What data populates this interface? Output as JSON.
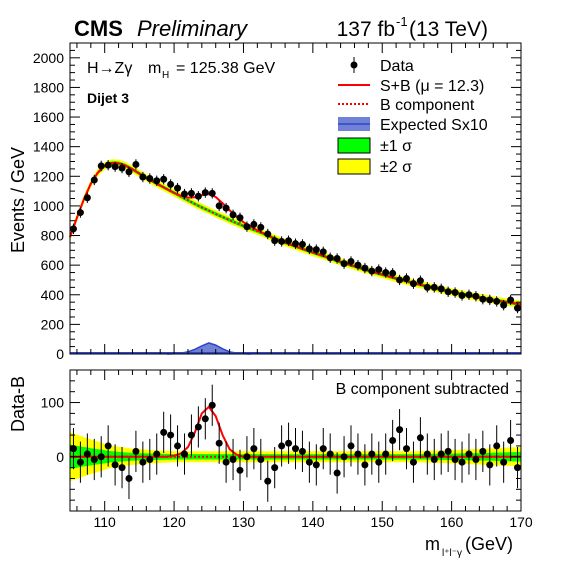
{
  "header": {
    "experiment": "CMS",
    "status": "Preliminary",
    "lumi_value": "137 fb",
    "lumi_exp": "-1",
    "lumi_energy": " (13 TeV)"
  },
  "annotations": {
    "process": "H→Zγ",
    "mass_symbol": "m",
    "mass_sub": "H",
    "mass_value": "= 125.38 GeV",
    "category": "Dijet 3",
    "ratio_note": "B component subtracted"
  },
  "legend": {
    "data": "Data",
    "sb": "S+B (μ = 12.3)",
    "b": "B component",
    "sig": "Expected Sx10",
    "one_sigma": "±1 σ",
    "two_sigma": "±2 σ"
  },
  "colors": {
    "sb_fit": "#ff0000",
    "b_component": "#ff0000",
    "signal_fill": "#6f82d6",
    "signal_line": "#3142c8",
    "one_sigma": "#00ff00",
    "two_sigma": "#ffff00",
    "data": "#000000"
  },
  "chart_data": {
    "type": "scatter",
    "x_label_main": "m",
    "x_label_sub": "l⁺l⁻γ",
    "x_label_unit": " (GeV)",
    "xlim": [
      105,
      170
    ],
    "x_ticks": [
      "110",
      "120",
      "130",
      "140",
      "150",
      "160",
      "170"
    ],
    "top": {
      "ylabel": "Events / GeV",
      "ylim": [
        0,
        2100
      ],
      "y_ticks": [
        "0",
        "200",
        "400",
        "600",
        "800",
        "1000",
        "1200",
        "1400",
        "1600",
        "1800",
        "2000"
      ],
      "data": {
        "x": [
          105.5,
          106.5,
          107.5,
          108.5,
          109.5,
          110.5,
          111.5,
          112.5,
          113.5,
          114.5,
          115.5,
          116.5,
          117.5,
          118.5,
          119.5,
          120.5,
          121.5,
          122.5,
          123.5,
          124.5,
          125.5,
          126.5,
          127.5,
          128.5,
          129.5,
          130.5,
          131.5,
          132.5,
          133.5,
          134.5,
          135.5,
          136.5,
          137.5,
          138.5,
          139.5,
          140.5,
          141.5,
          142.5,
          143.5,
          144.5,
          145.5,
          146.5,
          147.5,
          148.5,
          149.5,
          150.5,
          151.5,
          152.5,
          153.5,
          154.5,
          155.5,
          156.5,
          157.5,
          158.5,
          159.5,
          160.5,
          161.5,
          162.5,
          163.5,
          164.5,
          165.5,
          166.5,
          167.5,
          168.5,
          169.5
        ],
        "y": [
          845,
          955,
          1055,
          1175,
          1270,
          1275,
          1265,
          1255,
          1230,
          1280,
          1195,
          1185,
          1170,
          1180,
          1145,
          1120,
          1080,
          1085,
          1065,
          1090,
          1085,
          1000,
          985,
          940,
          920,
          860,
          875,
          855,
          810,
          765,
          760,
          765,
          745,
          740,
          710,
          705,
          690,
          650,
          645,
          610,
          625,
          600,
          580,
          560,
          570,
          550,
          545,
          500,
          510,
          475,
          495,
          450,
          450,
          440,
          420,
          415,
          395,
          400,
          390,
          370,
          365,
          355,
          330,
          365,
          310
        ],
        "err": 35
      },
      "fit_sb": {
        "x": [
          105,
          106,
          107,
          108,
          109,
          110,
          111,
          112,
          113,
          114,
          115,
          116,
          117,
          118,
          119,
          120,
          121,
          122,
          123,
          124,
          125,
          126,
          127,
          128,
          129,
          130,
          132,
          134,
          136,
          138,
          140,
          142,
          144,
          146,
          148,
          150,
          152,
          154,
          156,
          158,
          160,
          162,
          164,
          166,
          168,
          170
        ],
        "y": [
          790,
          920,
          1045,
          1150,
          1225,
          1270,
          1290,
          1288,
          1272,
          1247,
          1218,
          1190,
          1163,
          1138,
          1113,
          1088,
          1068,
          1056,
          1058,
          1072,
          1080,
          1060,
          1018,
          970,
          928,
          890,
          835,
          790,
          752,
          718,
          686,
          654,
          622,
          592,
          563,
          536,
          510,
          485,
          462,
          440,
          419,
          400,
          382,
          365,
          350,
          335
        ]
      },
      "fit_b": {
        "x": [
          105,
          106,
          107,
          108,
          109,
          110,
          111,
          112,
          113,
          114,
          115,
          116,
          117,
          118,
          119,
          120,
          121,
          122,
          123,
          124,
          125,
          126,
          127,
          128,
          129,
          130,
          132,
          134,
          136,
          138,
          140,
          142,
          144,
          146,
          148,
          150,
          152,
          154,
          156,
          158,
          160,
          162,
          164,
          166,
          168,
          170
        ],
        "y": [
          790,
          920,
          1045,
          1150,
          1225,
          1270,
          1290,
          1288,
          1272,
          1247,
          1218,
          1190,
          1163,
          1138,
          1113,
          1088,
          1063,
          1038,
          1013,
          990,
          968,
          946,
          925,
          904,
          884,
          865,
          830,
          790,
          752,
          718,
          686,
          654,
          622,
          592,
          563,
          536,
          510,
          485,
          462,
          440,
          419,
          400,
          382,
          365,
          350,
          335
        ]
      },
      "band_1sigma_halfwidth": 12,
      "band_2sigma_halfwidth": 25,
      "expected_signal": {
        "x": [
          119,
          120,
          121,
          122,
          123,
          124,
          125,
          126,
          127,
          128,
          129,
          130,
          131
        ],
        "y": [
          0,
          2,
          6,
          15,
          32,
          55,
          75,
          60,
          35,
          15,
          6,
          2,
          0
        ]
      }
    },
    "bottom": {
      "ylabel": "Data-B",
      "ylim": [
        -100,
        160
      ],
      "y_ticks": [
        "0",
        "100"
      ],
      "data": {
        "x": [
          105.5,
          106.5,
          107.5,
          108.5,
          109.5,
          110.5,
          111.5,
          112.5,
          113.5,
          114.5,
          115.5,
          116.5,
          117.5,
          118.5,
          119.5,
          120.5,
          121.5,
          122.5,
          123.5,
          124.5,
          125.5,
          126.5,
          127.5,
          128.5,
          129.5,
          130.5,
          131.5,
          132.5,
          133.5,
          134.5,
          135.5,
          136.5,
          137.5,
          138.5,
          139.5,
          140.5,
          141.5,
          142.5,
          143.5,
          144.5,
          145.5,
          146.5,
          147.5,
          148.5,
          149.5,
          150.5,
          151.5,
          152.5,
          153.5,
          154.5,
          155.5,
          156.5,
          157.5,
          158.5,
          159.5,
          160.5,
          161.5,
          162.5,
          163.5,
          164.5,
          165.5,
          166.5,
          167.5,
          168.5,
          169.5
        ],
        "y": [
          15,
          -10,
          5,
          -5,
          0,
          20,
          -15,
          -20,
          -40,
          10,
          -10,
          -5,
          5,
          45,
          40,
          20,
          5,
          40,
          55,
          70,
          95,
          25,
          -10,
          -5,
          -25,
          0,
          15,
          -5,
          -45,
          -20,
          20,
          25,
          15,
          10,
          -10,
          -15,
          15,
          5,
          -30,
          0,
          20,
          5,
          -15,
          5,
          -10,
          5,
          30,
          50,
          15,
          -10,
          35,
          5,
          -5,
          5,
          10,
          -5,
          -10,
          5,
          -5,
          10,
          -15,
          20,
          -10,
          30,
          -20
        ],
        "err": 38
      },
      "fit_residual": {
        "x": [
          105,
          115,
          119,
          120,
          121,
          122,
          123,
          124,
          125,
          126,
          127,
          128,
          129,
          130,
          135,
          140,
          150,
          160,
          170
        ],
        "y": [
          0,
          0,
          0,
          2,
          6,
          18,
          45,
          80,
          92,
          75,
          40,
          14,
          4,
          0,
          0,
          0,
          0,
          0,
          0
        ]
      },
      "band_1sigma": {
        "x": [
          105,
          108,
          111,
          114,
          117,
          120,
          125,
          130,
          135,
          140,
          145,
          150,
          155,
          160,
          165,
          170
        ],
        "hw": [
          22,
          16,
          10,
          7,
          6,
          5,
          5,
          5,
          5,
          5,
          5,
          5,
          5,
          6,
          7,
          9
        ]
      },
      "band_2sigma": {
        "x": [
          105,
          108,
          111,
          114,
          117,
          120,
          125,
          130,
          135,
          140,
          145,
          150,
          155,
          160,
          165,
          170
        ],
        "hw": [
          45,
          32,
          20,
          15,
          12,
          10,
          10,
          10,
          10,
          10,
          10,
          10,
          10,
          12,
          15,
          18
        ]
      }
    }
  }
}
